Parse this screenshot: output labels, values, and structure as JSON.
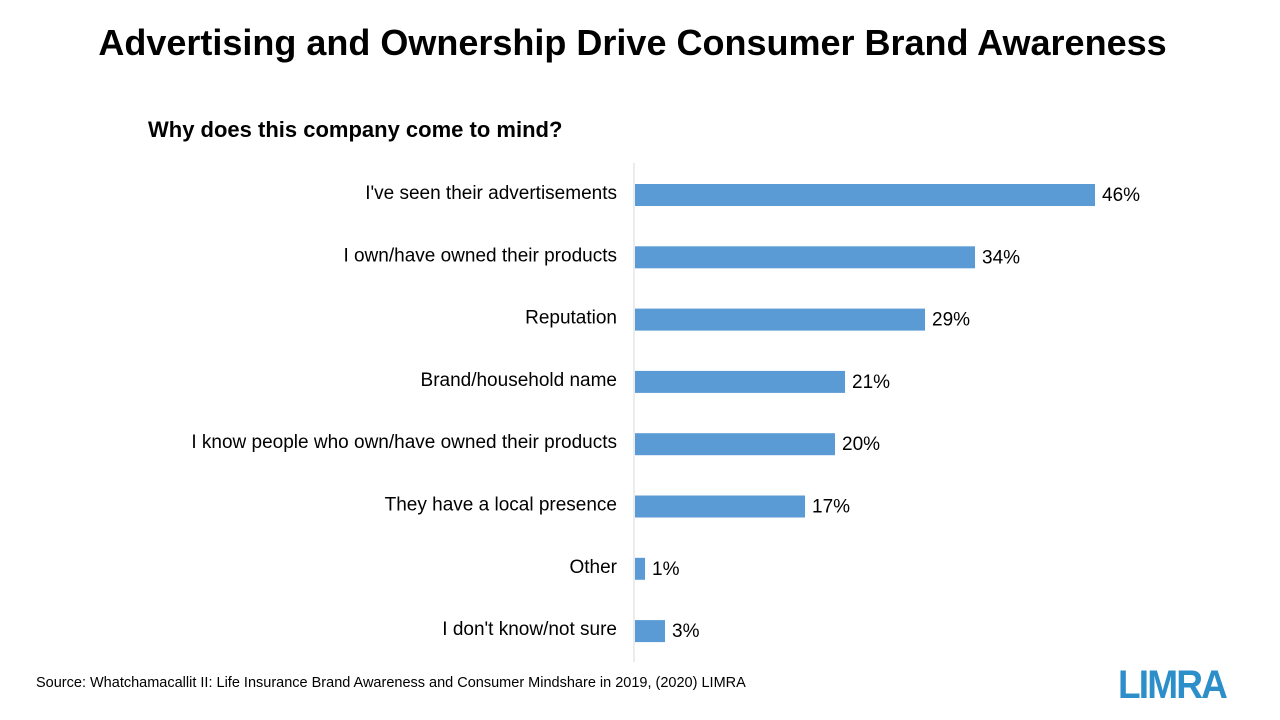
{
  "title": "Advertising and Ownership Drive Consumer Brand Awareness",
  "source": "Source: Whatchamacallit II:  Life Insurance  Brand Awareness and Consumer Mindshare in 2019, (2020) LIMRA",
  "logo_text": "LIMRA",
  "colors": {
    "bar": "#5b9bd5",
    "axis": "#d9d9d9",
    "logo": "#2c8fc9"
  },
  "chart_data": {
    "type": "bar",
    "orientation": "horizontal",
    "title": "Why does this company come to mind?",
    "categories": [
      "I've seen their advertisements",
      "I own/have owned their products",
      "Reputation",
      "Brand/household name",
      "I know people who own/have owned their products",
      "They have a local presence",
      "Other",
      "I don't know/not sure"
    ],
    "values": [
      46,
      34,
      29,
      21,
      20,
      17,
      1,
      3
    ],
    "value_labels": [
      "46%",
      "34%",
      "29%",
      "21%",
      "20%",
      "17%",
      "1%",
      "3%"
    ],
    "unit": "%",
    "xlim": [
      0,
      60
    ],
    "grid": false,
    "legend": "none"
  }
}
